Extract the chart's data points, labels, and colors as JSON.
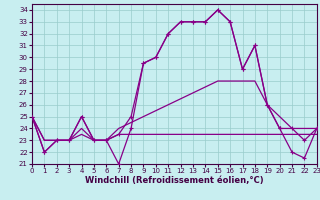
{
  "xlabel": "Windchill (Refroidissement éolien,°C)",
  "xlim": [
    0,
    23
  ],
  "ylim": [
    21,
    34.5
  ],
  "yticks": [
    21,
    22,
    23,
    24,
    25,
    26,
    27,
    28,
    29,
    30,
    31,
    32,
    33,
    34
  ],
  "xticks": [
    0,
    1,
    2,
    3,
    4,
    5,
    6,
    7,
    8,
    9,
    10,
    11,
    12,
    13,
    14,
    15,
    16,
    17,
    18,
    19,
    20,
    21,
    22,
    23
  ],
  "bg_color": "#c8eef0",
  "grid_color": "#99cccc",
  "line_color": "#880088",
  "series1": [
    25,
    22,
    23,
    23,
    25,
    23,
    23,
    21,
    24,
    29.5,
    30,
    32,
    33,
    33,
    33,
    34,
    33,
    29,
    31,
    26,
    24,
    22,
    21.5,
    24
  ],
  "series2": [
    25,
    22,
    23,
    23,
    25,
    23,
    23,
    23.5,
    25,
    29.5,
    30,
    32,
    33,
    33,
    33,
    34,
    33,
    29,
    31,
    26,
    24,
    24,
    23,
    24
  ],
  "series3": [
    25,
    23,
    23,
    23,
    24,
    23,
    23,
    24,
    24.5,
    25,
    25.5,
    26,
    26.5,
    27,
    27.5,
    28,
    28,
    28,
    28,
    26,
    25,
    24,
    24,
    24
  ],
  "series4": [
    25,
    23,
    23,
    23,
    23.5,
    23,
    23,
    23.5,
    23.5,
    23.5,
    23.5,
    23.5,
    23.5,
    23.5,
    23.5,
    23.5,
    23.5,
    23.5,
    23.5,
    23.5,
    23.5,
    23.5,
    23.5,
    23.5
  ],
  "tick_color": "#440044",
  "tick_fontsize": 5.0,
  "xlabel_fontsize": 6.0
}
